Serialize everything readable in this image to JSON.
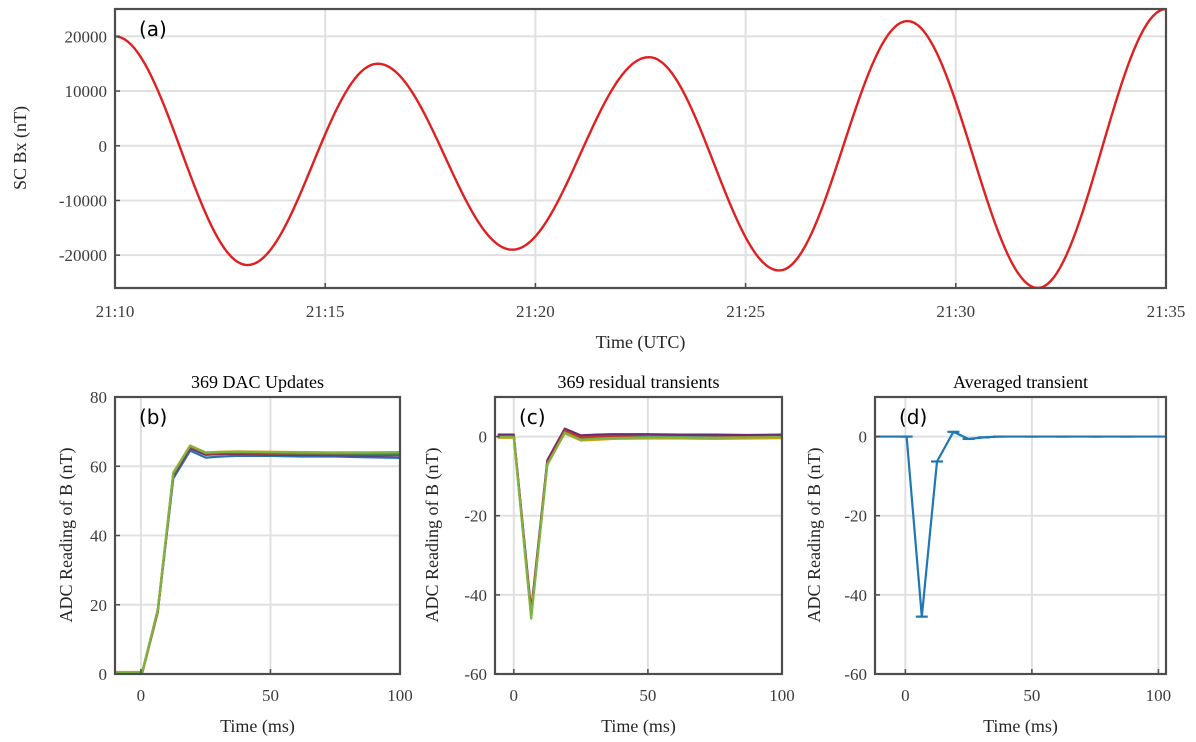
{
  "chart_data": [
    {
      "id": "a",
      "type": "line",
      "panel_label": "(a)",
      "title": "",
      "xlabel": "Time (UTC)",
      "ylabel": "SC Bx (nT)",
      "x_unit": "minutes after 21:10 UTC",
      "xlim": [
        0,
        25
      ],
      "ylim": [
        -26000,
        25000
      ],
      "xticks": [
        0,
        5,
        10,
        15,
        20,
        25
      ],
      "xtick_labels": [
        "21:10",
        "21:15",
        "21:20",
        "21:25",
        "21:30",
        "21:35"
      ],
      "yticks": [
        -20000,
        -10000,
        0,
        10000,
        20000
      ],
      "ytick_labels": [
        "-20000",
        "-10000",
        "0",
        "10000",
        "20000"
      ],
      "grid": true,
      "series": [
        {
          "color": "#e02020",
          "extrema": [
            [
              0.0,
              20000
            ],
            [
              3.15,
              -21800
            ],
            [
              6.25,
              15000
            ],
            [
              9.45,
              -19000
            ],
            [
              12.7,
              16200
            ],
            [
              15.8,
              -22800
            ],
            [
              18.85,
              22800
            ],
            [
              21.95,
              -26000
            ],
            [
              25.0,
              25000
            ]
          ]
        }
      ]
    },
    {
      "id": "b",
      "type": "line",
      "panel_label": "(b)",
      "title": "369 DAC Updates",
      "xlabel": "Time (ms)",
      "ylabel": "ADC Reading of B (nT)",
      "xlim": [
        -10,
        100
      ],
      "ylim": [
        0,
        80
      ],
      "xticks": [
        0,
        50,
        100
      ],
      "xtick_labels": [
        "0",
        "50",
        "100"
      ],
      "yticks": [
        0,
        20,
        40,
        60,
        80
      ],
      "ytick_labels": [
        "0",
        "20",
        "40",
        "60",
        "80"
      ],
      "grid": true,
      "x": [
        -10,
        -6,
        -4,
        -1,
        0.5,
        6.5,
        12.5,
        19,
        25,
        31,
        37,
        50,
        62,
        75,
        87,
        100
      ],
      "series": [
        {
          "color": "#2b6fb3",
          "values": [
            0.3,
            0.3,
            0.3,
            0.3,
            0.3,
            18,
            56.5,
            64.5,
            62.5,
            62.8,
            63,
            63,
            62.8,
            62.8,
            62.6,
            62.4
          ]
        },
        {
          "color": "#6a2c70",
          "values": [
            0.5,
            0.5,
            0.5,
            0.5,
            0.5,
            18.4,
            57.3,
            65.2,
            63.3,
            63.5,
            63.6,
            63.4,
            63.3,
            63.2,
            63.1,
            63.1
          ]
        },
        {
          "color": "#c0392b",
          "values": [
            0.2,
            0.2,
            0.2,
            0.2,
            0.2,
            17.8,
            57.6,
            65.6,
            63.6,
            63.7,
            63.8,
            63.6,
            63.5,
            63.4,
            63.3,
            63.3
          ]
        },
        {
          "color": "#2e8b57",
          "values": [
            0.4,
            0.4,
            0.4,
            0.4,
            0.4,
            18.2,
            57.9,
            65.8,
            63.8,
            64.0,
            64.0,
            63.8,
            63.7,
            63.7,
            63.6,
            63.6
          ]
        },
        {
          "color": "#d4a017",
          "values": [
            0.6,
            0.6,
            0.6,
            0.6,
            0.6,
            18.6,
            58.2,
            66.0,
            64.0,
            64.2,
            64.3,
            64.2,
            64.1,
            64.0,
            64.0,
            64.1
          ]
        },
        {
          "color": "#7cb342",
          "values": [
            0.4,
            0.4,
            0.4,
            0.4,
            0.4,
            18.5,
            58.0,
            65.9,
            63.9,
            64.1,
            64.2,
            64.1,
            64.0,
            63.9,
            63.9,
            64.0
          ]
        }
      ]
    },
    {
      "id": "c",
      "type": "line",
      "panel_label": "(c)",
      "title": "369 residual transients",
      "xlabel": "Time (ms)",
      "ylabel": "ADC Reading of B (nT)",
      "xlim": [
        -7,
        100
      ],
      "ylim": [
        -60,
        10
      ],
      "xticks": [
        0,
        50,
        100
      ],
      "xtick_labels": [
        "0",
        "50",
        "100"
      ],
      "yticks": [
        -60,
        -40,
        -20,
        0
      ],
      "ytick_labels": [
        "-60",
        "-40",
        "-20",
        "0"
      ],
      "grid": true,
      "x": [
        -6,
        -3,
        0,
        6.5,
        12.5,
        19,
        25,
        31,
        37,
        50,
        62,
        75,
        87,
        100
      ],
      "series": [
        {
          "color": "#2b6fb3",
          "values": [
            0.2,
            0.2,
            0.2,
            -44.5,
            -6.5,
            1.2,
            -0.5,
            -0.2,
            0.2,
            0.1,
            0.1,
            0.1,
            0.0,
            0.0
          ]
        },
        {
          "color": "#6a2c70",
          "values": [
            0.5,
            0.5,
            0.5,
            -44,
            -6,
            2.0,
            0.3,
            0.5,
            0.6,
            0.6,
            0.5,
            0.5,
            0.4,
            0.5
          ]
        },
        {
          "color": "#c0392b",
          "values": [
            0.1,
            0.1,
            0.1,
            -45,
            -6.8,
            1.5,
            -0.2,
            0.0,
            0.1,
            -0.3,
            -0.3,
            -0.2,
            -0.1,
            0.0
          ]
        },
        {
          "color": "#d4a017",
          "values": [
            -0.3,
            -0.3,
            -0.3,
            -45.5,
            -7.0,
            0.8,
            -1.0,
            -0.8,
            -0.6,
            -0.5,
            -0.5,
            -0.6,
            -0.5,
            -0.4
          ]
        },
        {
          "color": "#7cb342",
          "values": [
            -0.1,
            -0.1,
            -0.1,
            -46,
            -7.2,
            1.0,
            -0.8,
            -0.5,
            -0.4,
            -0.2,
            -0.2,
            -0.3,
            -0.2,
            -0.1
          ]
        }
      ]
    },
    {
      "id": "d",
      "type": "line",
      "panel_label": "(d)",
      "title": "Averaged transient",
      "xlabel": "Time (ms)",
      "ylabel": "ADC Reading of B (nT)",
      "xlim": [
        -12,
        103
      ],
      "ylim": [
        -60,
        10
      ],
      "xticks": [
        0,
        50,
        100
      ],
      "xtick_labels": [
        "0",
        "50",
        "100"
      ],
      "yticks": [
        -60,
        -40,
        -20,
        0
      ],
      "ytick_labels": [
        "-60",
        "-40",
        "-20",
        "0"
      ],
      "grid": true,
      "error_bars": true,
      "x": [
        -12,
        0.5,
        6.5,
        12.5,
        19,
        25,
        31,
        37,
        50,
        62,
        75,
        87,
        103
      ],
      "series": [
        {
          "color": "#1f77b4",
          "values": [
            0,
            0,
            -45.5,
            -6.3,
            1.2,
            -0.6,
            -0.2,
            0.0,
            0.0,
            0.0,
            0.0,
            0.0,
            0.0
          ]
        }
      ]
    }
  ]
}
